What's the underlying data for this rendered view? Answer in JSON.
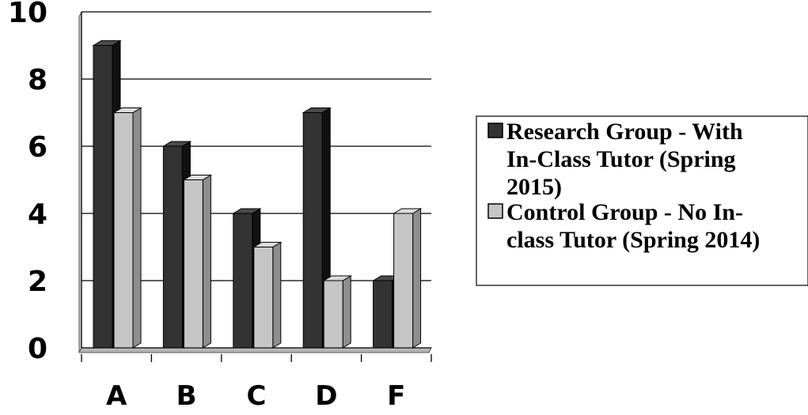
{
  "chart_data": {
    "type": "bar",
    "title": "",
    "xlabel": "",
    "ylabel": "",
    "categories": [
      "A",
      "B",
      "C",
      "D",
      "F"
    ],
    "ylim": [
      0,
      10
    ],
    "yticks": [
      0,
      2,
      4,
      6,
      8,
      10
    ],
    "grid": true,
    "style": "3d-columns",
    "legend_position": "right",
    "series": [
      {
        "name": "Research Group - With In-Class Tutor (Spring 2015)",
        "values": [
          9,
          6,
          4,
          7,
          2
        ],
        "color": "#333333"
      },
      {
        "name": "Control Group - No In-class Tutor (Spring 2014)",
        "values": [
          7,
          5,
          3,
          2,
          4
        ],
        "color": "#c6c6c6"
      }
    ]
  },
  "legend": {
    "items": [
      {
        "lines": [
          "Research Group - With",
          "In-Class Tutor (Spring",
          "2015)"
        ]
      },
      {
        "lines": [
          "Control Group - No In-",
          "class Tutor (Spring 2014)"
        ]
      }
    ]
  }
}
